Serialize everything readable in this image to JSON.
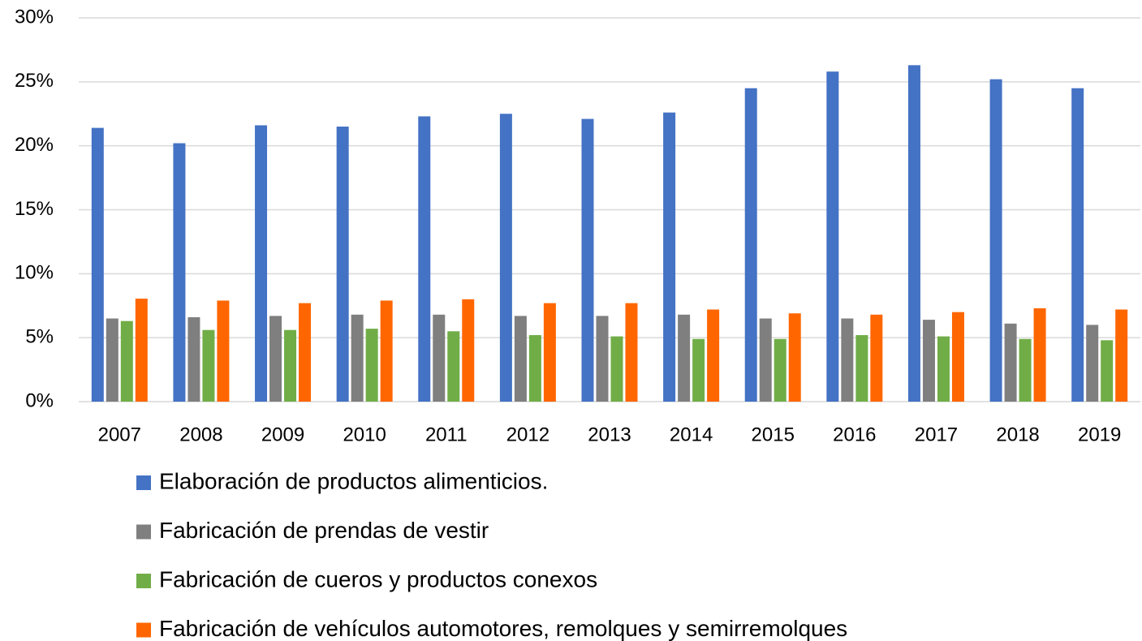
{
  "chart_data": {
    "type": "bar",
    "categories": [
      "2007",
      "2008",
      "2009",
      "2010",
      "2011",
      "2012",
      "2013",
      "2014",
      "2015",
      "2016",
      "2017",
      "2018",
      "2019"
    ],
    "series": [
      {
        "name": "Elaboración de productos alimenticios.",
        "color": "#4472c4",
        "values": [
          21.4,
          20.2,
          21.6,
          21.5,
          22.3,
          22.5,
          22.1,
          22.6,
          24.5,
          25.8,
          26.3,
          25.2,
          24.5
        ]
      },
      {
        "name": "Fabricación de prendas de vestir",
        "color": "#7f7f7f",
        "values": [
          6.5,
          6.6,
          6.7,
          6.8,
          6.8,
          6.7,
          6.7,
          6.8,
          6.5,
          6.5,
          6.4,
          6.1,
          6.0
        ]
      },
      {
        "name": "Fabricación de cueros y productos conexos",
        "color": "#70ad47",
        "values": [
          6.3,
          5.6,
          5.6,
          5.7,
          5.5,
          5.2,
          5.1,
          4.9,
          4.9,
          5.2,
          5.1,
          4.9,
          4.8
        ]
      },
      {
        "name": "Fabricación de vehículos automotores, remolques y semirremolques",
        "color": "#ff6600",
        "values": [
          8.05,
          7.9,
          7.7,
          7.9,
          8.0,
          7.7,
          7.7,
          7.2,
          6.9,
          6.8,
          7.0,
          7.3,
          7.2
        ]
      }
    ],
    "ylim": [
      0,
      30
    ],
    "yticks": [
      {
        "value": 0,
        "label": "0%"
      },
      {
        "value": 5,
        "label": "5%"
      },
      {
        "value": 10,
        "label": "10%"
      },
      {
        "value": 15,
        "label": "15%"
      },
      {
        "value": 20,
        "label": "20%"
      },
      {
        "value": 25,
        "label": "25%"
      },
      {
        "value": 30,
        "label": "30%"
      }
    ],
    "grid": true,
    "legend": "bottom"
  }
}
